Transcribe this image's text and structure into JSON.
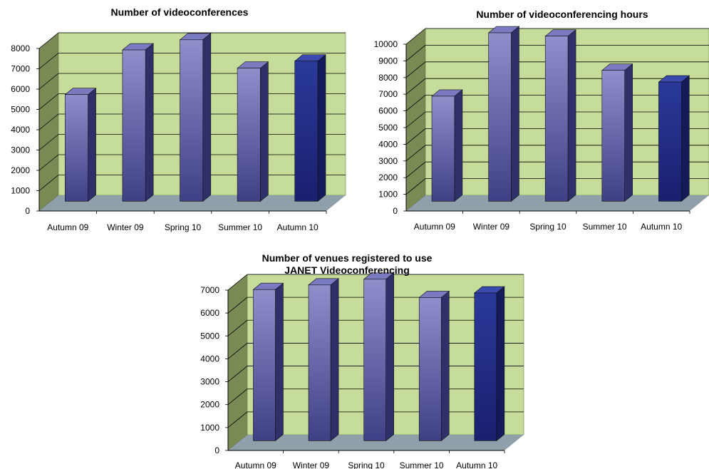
{
  "chart_data": [
    {
      "type": "bar",
      "title": [
        "Number of videoconferences"
      ],
      "categories": [
        "Autumn 09",
        "Winter 09",
        "Spring 10",
        "Summer 10",
        "Autumn 10"
      ],
      "values": [
        5250,
        7450,
        7950,
        6550,
        6900
      ],
      "yticks": [
        "0",
        "1000",
        "2000",
        "3000",
        "4000",
        "5000",
        "6000",
        "7000",
        "8000"
      ],
      "ylim": [
        0,
        8000
      ],
      "grid": true,
      "legend": "none",
      "colors": {
        "wall": "#c5dc9a",
        "side_wall": "#7a8a55",
        "floor": "#8fa0ab",
        "bar_light": "#8f8fcc",
        "bar_dark": "#3f3f85",
        "highlight_bar": "#2a3a9a"
      }
    },
    {
      "type": "bar",
      "title": [
        "Number of videoconferencing hours"
      ],
      "categories": [
        "Autumn 09",
        "Winter 09",
        "Spring 10",
        "Summer 10",
        "Autumn 10"
      ],
      "values": [
        6300,
        10100,
        9900,
        7850,
        7150
      ],
      "yticks": [
        "0",
        "1000",
        "2000",
        "3000",
        "4000",
        "5000",
        "6000",
        "7000",
        "8000",
        "9000",
        "10000"
      ],
      "ylim": [
        0,
        10000
      ],
      "grid": true,
      "legend": "none",
      "colors": {
        "wall": "#c5dc9a",
        "side_wall": "#7a8a55",
        "floor": "#8fa0ab",
        "bar_light": "#8f8fcc",
        "bar_dark": "#3f3f85",
        "highlight_bar": "#2a3a9a"
      }
    },
    {
      "type": "bar",
      "title": [
        "Number of venues registered to use",
        "JANET Videoconferencing"
      ],
      "categories": [
        "Autumn 09",
        "Winter 09",
        "Spring 10",
        "Summer 10",
        "Autumn 10"
      ],
      "values": [
        6600,
        6800,
        7050,
        6250,
        6450
      ],
      "yticks": [
        "0",
        "1000",
        "2000",
        "3000",
        "4000",
        "5000",
        "6000",
        "7000"
      ],
      "ylim": [
        0,
        7000
      ],
      "grid": true,
      "legend": "none",
      "colors": {
        "wall": "#c5dc9a",
        "side_wall": "#7a8a55",
        "floor": "#8fa0ab",
        "bar_light": "#8f8fcc",
        "bar_dark": "#3f3f85",
        "highlight_bar": "#2a3a9a"
      }
    }
  ]
}
